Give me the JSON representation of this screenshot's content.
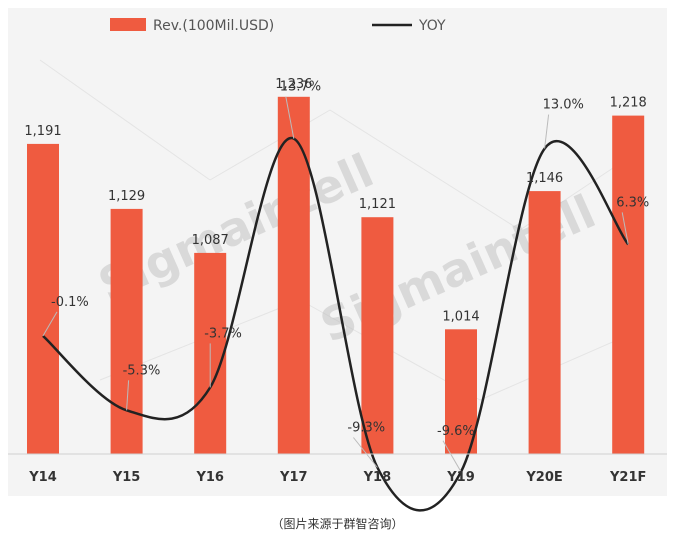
{
  "chart_data": {
    "type": "bar",
    "categories": [
      "Y14",
      "Y15",
      "Y16",
      "Y17",
      "Y18",
      "Y19",
      "Y20E",
      "Y21F"
    ],
    "series": [
      {
        "name": "Rev.(100Mil.USD)",
        "kind": "bar",
        "color": "#ef5b40",
        "values": [
          1191,
          1129,
          1087,
          1236,
          1121,
          1014,
          1146,
          1218
        ],
        "labels": [
          "1,191",
          "1,129",
          "1,087",
          "1,236",
          "1,121",
          "1,014",
          "1,146",
          "1,218"
        ]
      },
      {
        "name": "YOY",
        "kind": "line",
        "color": "#222222",
        "values": [
          -0.1,
          -5.3,
          -3.7,
          13.7,
          -9.3,
          -9.6,
          13.0,
          6.3
        ],
        "labels": [
          "-0.1%",
          "-5.3%",
          "-3.7%",
          "13.7%",
          "-9.3%",
          "-9.6%",
          "13.0%",
          "6.3%"
        ]
      }
    ],
    "legend_position": "top-left",
    "grid": false,
    "watermark": "Sigmaintell"
  },
  "caption": "（图片来源于群智咨询）"
}
